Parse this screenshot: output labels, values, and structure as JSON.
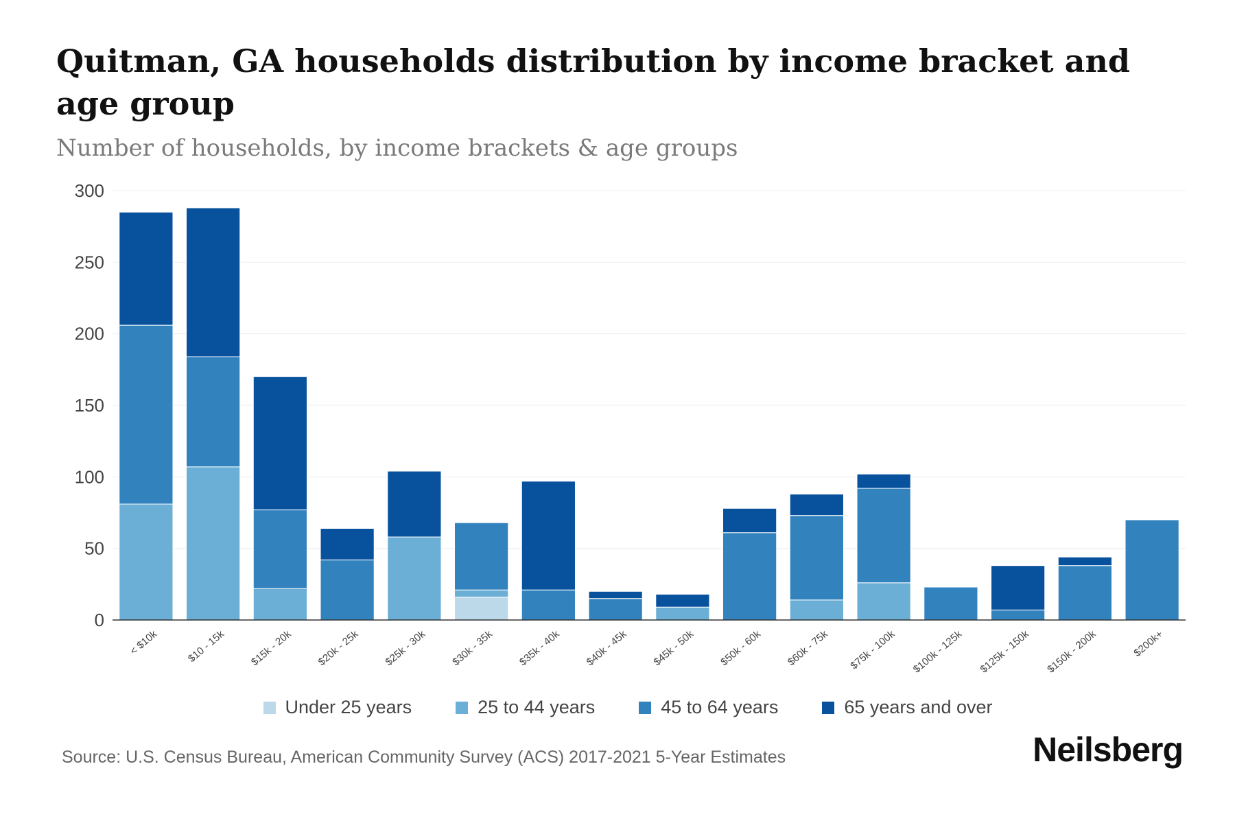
{
  "title": "Quitman, GA households distribution by income bracket and age group",
  "subtitle": "Number of households, by income brackets & age groups",
  "source": "Source: U.S. Census Bureau, American Community Survey (ACS) 2017-2021 5-Year Estimates",
  "brand": "Neilsberg",
  "chart_data": {
    "type": "bar",
    "stacked": true,
    "title": "Quitman, GA households distribution by income bracket and age group",
    "subtitle": "Number of households, by income brackets & age groups",
    "xlabel": "",
    "ylabel": "",
    "ylim": [
      0,
      300
    ],
    "yticks": [
      0,
      50,
      100,
      150,
      200,
      250,
      300
    ],
    "grid": true,
    "legend_position": "bottom",
    "categories": [
      "< $10k",
      "$10 - 15k",
      "$15k - 20k",
      "$20k - 25k",
      "$25k - 30k",
      "$30k - 35k",
      "$35k - 40k",
      "$40k - 45k",
      "$45k - 50k",
      "$50k - 60k",
      "$60k - 75k",
      "$75k - 100k",
      "$100k - 125k",
      "$125k - 150k",
      "$150k - 200k",
      "$200k+"
    ],
    "series": [
      {
        "name": "Under 25 years",
        "color": "#bcd9ea",
        "values": [
          0,
          0,
          0,
          0,
          0,
          16,
          0,
          0,
          0,
          0,
          0,
          0,
          0,
          0,
          0,
          0
        ]
      },
      {
        "name": "25 to 44 years",
        "color": "#6baed6",
        "values": [
          81,
          107,
          22,
          0,
          58,
          5,
          0,
          0,
          9,
          0,
          14,
          26,
          0,
          0,
          0,
          0
        ]
      },
      {
        "name": "45 to 64 years",
        "color": "#3182bd",
        "values": [
          125,
          77,
          55,
          42,
          0,
          47,
          21,
          15,
          0,
          61,
          59,
          66,
          23,
          7,
          38,
          70
        ]
      },
      {
        "name": "65 years and over",
        "color": "#08519c",
        "values": [
          79,
          104,
          93,
          22,
          46,
          0,
          76,
          5,
          9,
          17,
          15,
          10,
          0,
          31,
          6,
          0
        ]
      }
    ]
  }
}
